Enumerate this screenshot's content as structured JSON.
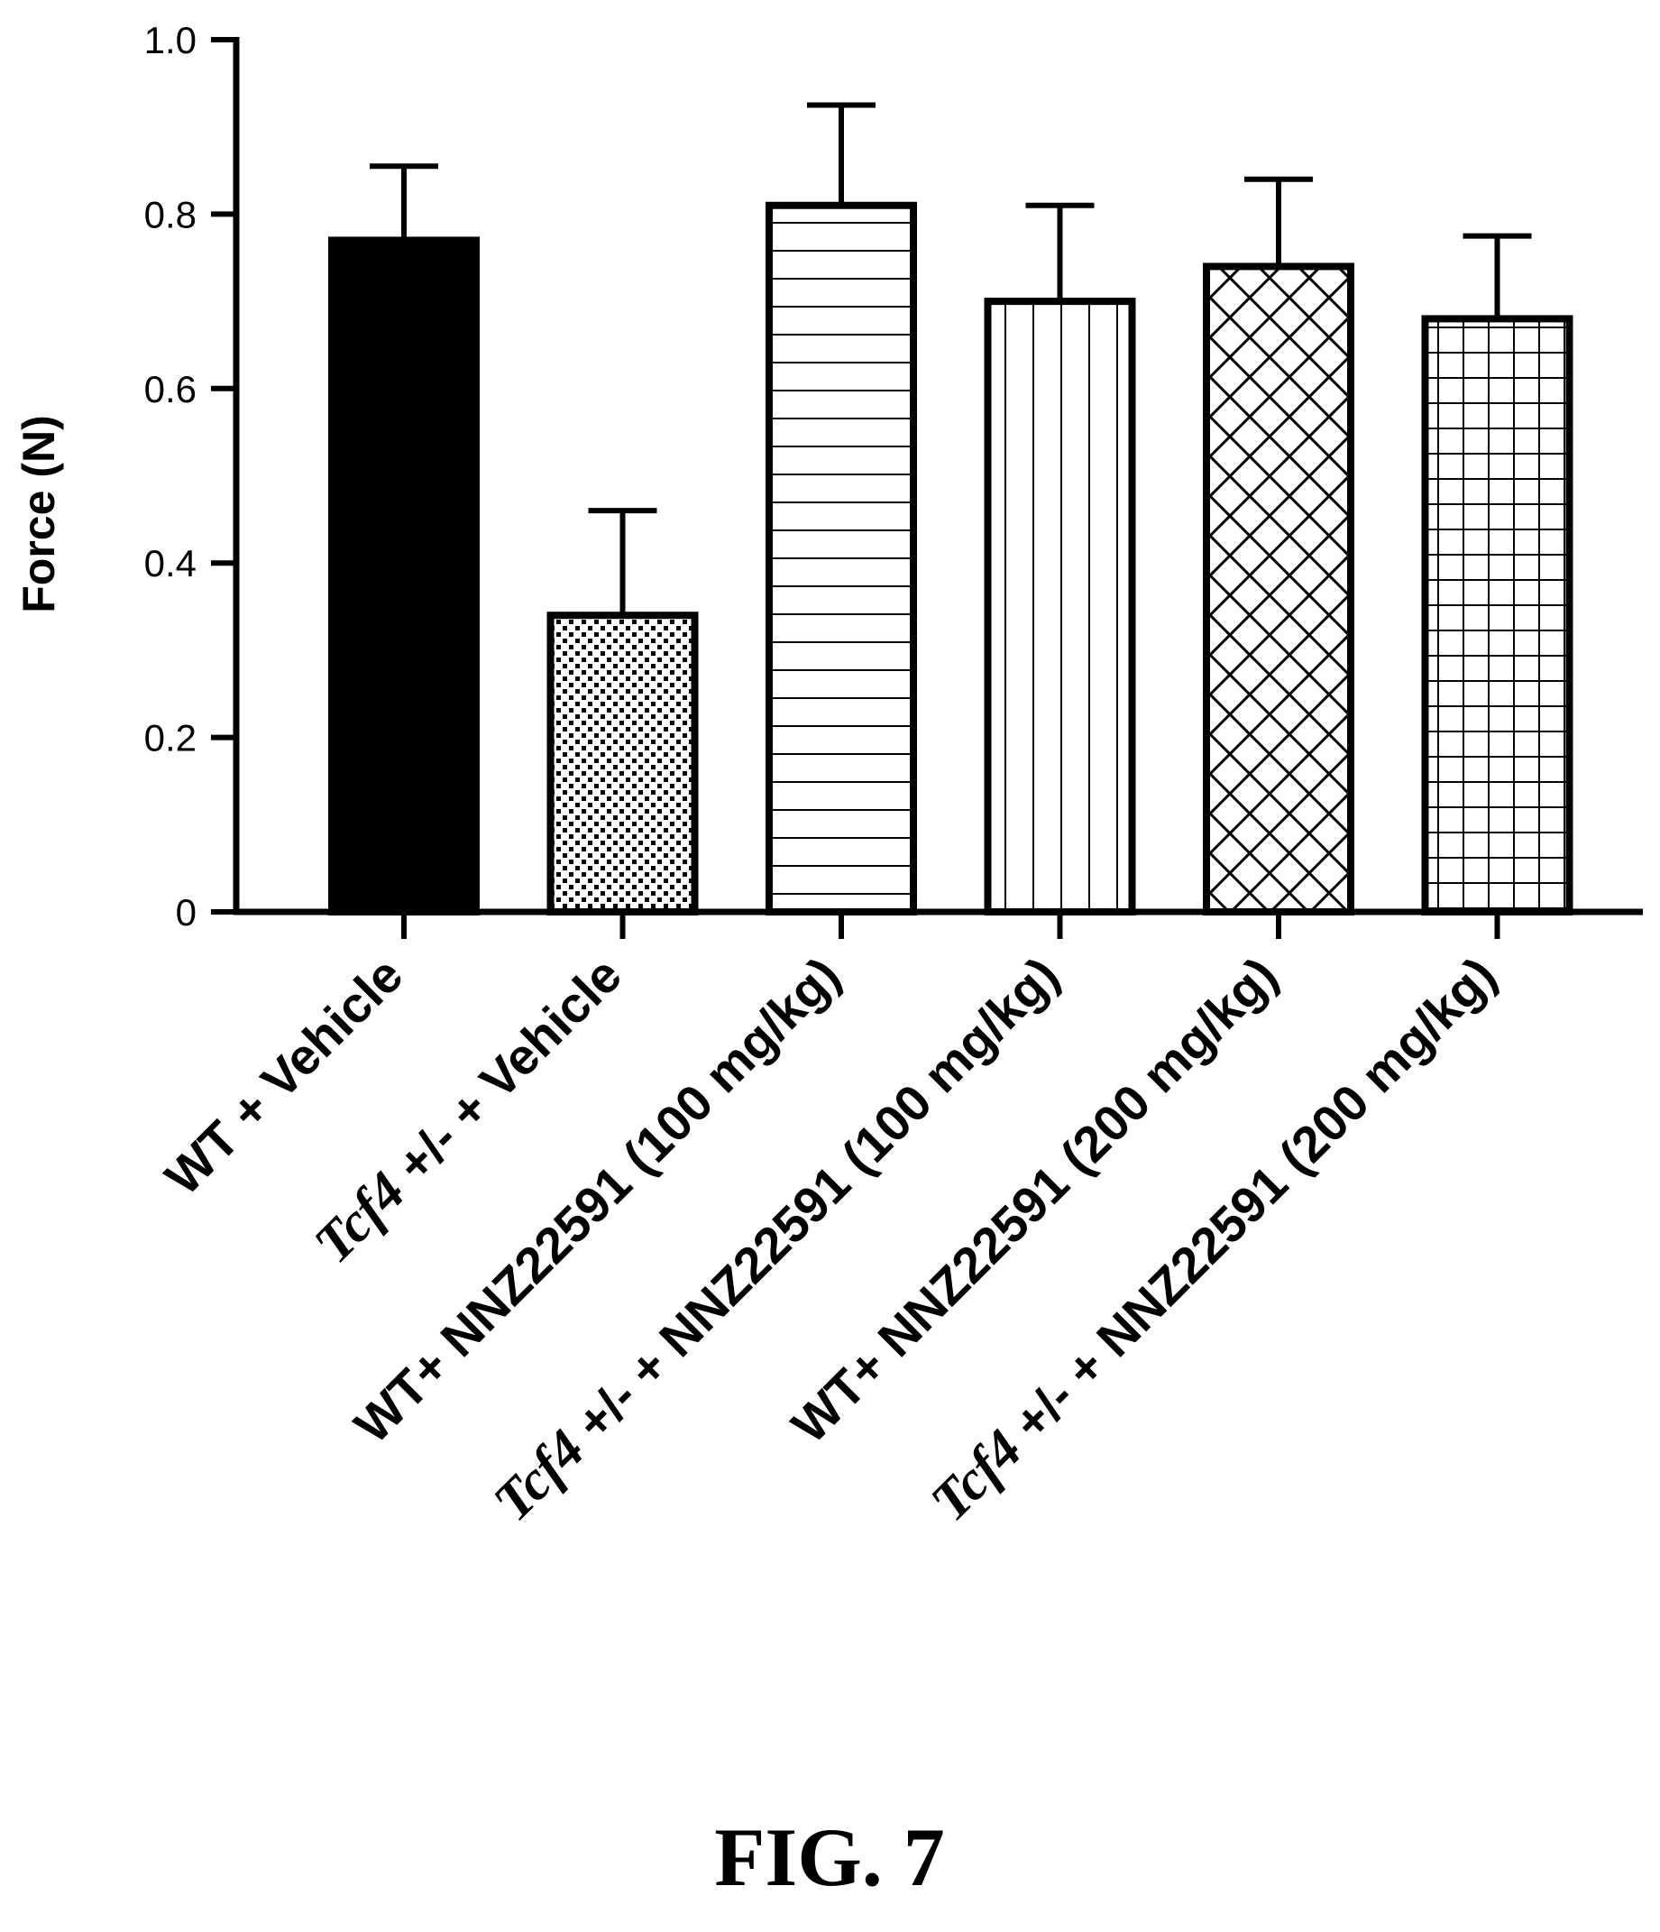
{
  "figure_label": "FIG. 7",
  "chart_data": {
    "type": "bar",
    "ylabel": "Force (N)",
    "xlabel": "",
    "ylim": [
      0,
      1.0
    ],
    "yticks": [
      0,
      0.2,
      0.4,
      0.6,
      0.8,
      1.0
    ],
    "ytick_labels": [
      "0",
      "0.2",
      "0.4",
      "0.6",
      "0.8",
      "1.0"
    ],
    "grid": false,
    "categories": [
      "WT + Vehicle",
      "Tcf4 +/- + Vehicle",
      "WT+ NNZ22591 (100 mg/kg)",
      "Tcf4 +/- + NNZ22591 (100 mg/kg)",
      "WT+ NNZ22591 (200 mg/kg)",
      "Tcf4 +/- + NNZ22591 (200 mg/kg)"
    ],
    "category_parts": [
      {
        "italic": "",
        "rest": "WT + Vehicle"
      },
      {
        "italic": "Tcf4",
        "rest": " +/- + Vehicle"
      },
      {
        "italic": "",
        "rest": "WT+ NNZ22591 (100 mg/kg)"
      },
      {
        "italic": "Tcf4",
        "rest": " +/- + NNZ22591 (100 mg/kg)"
      },
      {
        "italic": "",
        "rest": "WT+ NNZ22591 (200 mg/kg)"
      },
      {
        "italic": "Tcf4",
        "rest": " +/- + NNZ22591 (200 mg/kg)"
      }
    ],
    "values": [
      0.77,
      0.34,
      0.81,
      0.7,
      0.74,
      0.68
    ],
    "errors": [
      0.085,
      0.12,
      0.115,
      0.11,
      0.1,
      0.095
    ],
    "patterns": [
      "solid",
      "dots",
      "horizontal-lines",
      "vertical-lines",
      "crosshatch",
      "grid"
    ],
    "colors": {
      "ink": "#000000",
      "background": "#ffffff"
    }
  }
}
